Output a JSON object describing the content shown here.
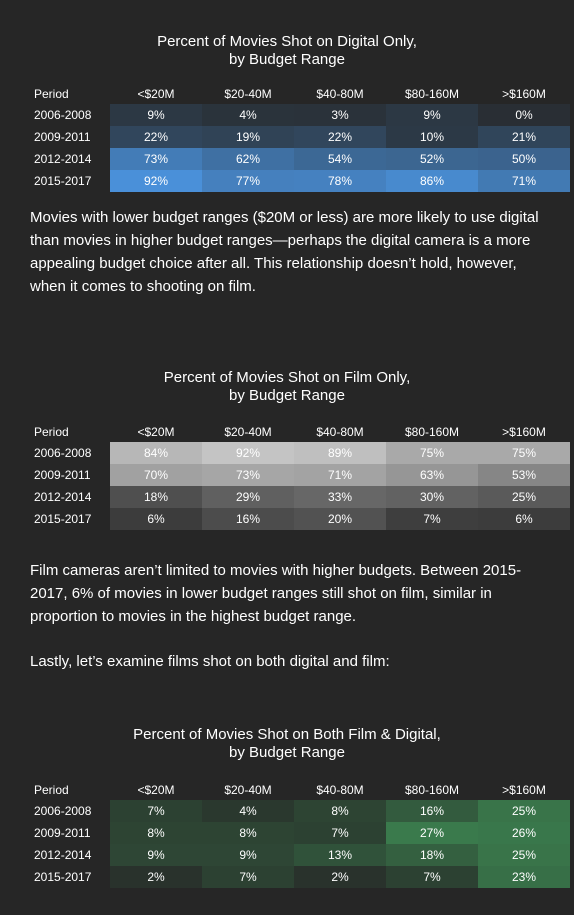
{
  "chart_data": [
    {
      "type": "heatmap",
      "title_lines": [
        "Percent of Movies Shot on Digital Only,",
        "by Budget Range"
      ],
      "row_header": "Period",
      "columns": [
        "<$20M",
        "$20-40M",
        "$40-80M",
        "$80-160M",
        ">$160M"
      ],
      "rows": [
        "2006-2008",
        "2009-2011",
        "2012-2014",
        "2015-2017"
      ],
      "values": [
        [
          9,
          4,
          3,
          9,
          0
        ],
        [
          22,
          19,
          22,
          10,
          21
        ],
        [
          73,
          62,
          54,
          52,
          50
        ],
        [
          92,
          77,
          78,
          86,
          71
        ]
      ],
      "labels": [
        [
          "9%",
          "4%",
          "3%",
          "9%",
          "0%"
        ],
        [
          "22%",
          "19%",
          "22%",
          "10%",
          "21%"
        ],
        [
          "73%",
          "62%",
          "54%",
          "52%",
          "50%"
        ],
        [
          "92%",
          "77%",
          "78%",
          "86%",
          "71%"
        ]
      ],
      "color_low": "#262626",
      "color_high": "#4a90d9"
    },
    {
      "type": "heatmap",
      "title_lines": [
        "Percent of Movies Shot on Film Only,",
        "by Budget Range"
      ],
      "row_header": "Period",
      "columns": [
        "<$20M",
        "$20-40M",
        "$40-80M",
        "$80-160M",
        ">$160M"
      ],
      "rows": [
        "2006-2008",
        "2009-2011",
        "2012-2014",
        "2015-2017"
      ],
      "values": [
        [
          84,
          92,
          89,
          75,
          75
        ],
        [
          70,
          73,
          71,
          63,
          53
        ],
        [
          18,
          29,
          33,
          30,
          25
        ],
        [
          6,
          16,
          20,
          7,
          6
        ]
      ],
      "labels": [
        [
          "84%",
          "92%",
          "89%",
          "75%",
          "75%"
        ],
        [
          "70%",
          "73%",
          "71%",
          "63%",
          "53%"
        ],
        [
          "18%",
          "29%",
          "33%",
          "30%",
          "25%"
        ],
        [
          "6%",
          "16%",
          "20%",
          "7%",
          "6%"
        ]
      ],
      "color_low": "#262626",
      "color_high": "#c4c4c4"
    },
    {
      "type": "heatmap",
      "title_lines": [
        "Percent of Movies Shot on Both Film & Digital,",
        "by Budget Range"
      ],
      "row_header": "Period",
      "columns": [
        "<$20M",
        "$20-40M",
        "$40-80M",
        "$80-160M",
        ">$160M"
      ],
      "rows": [
        "2006-2008",
        "2009-2011",
        "2012-2014",
        "2015-2017"
      ],
      "values": [
        [
          7,
          4,
          8,
          16,
          25
        ],
        [
          8,
          8,
          7,
          27,
          26
        ],
        [
          9,
          9,
          13,
          18,
          25
        ],
        [
          2,
          7,
          2,
          7,
          23
        ]
      ],
      "labels": [
        [
          "7%",
          "4%",
          "8%",
          "16%",
          "25%"
        ],
        [
          "8%",
          "8%",
          "7%",
          "27%",
          "26%"
        ],
        [
          "9%",
          "9%",
          "13%",
          "18%",
          "25%"
        ],
        [
          "2%",
          "7%",
          "2%",
          "7%",
          "23%"
        ]
      ],
      "color_low": "#262626",
      "color_high": "#3a7a4c"
    }
  ],
  "paragraphs": [
    "Movies with lower budget ranges ($20M or less) are more likely to use digital than movies in higher budget ranges—perhaps the digital camera is a more appealing budget choice after all. This relationship doesn’t hold, however, when it comes to shooting on film.",
    "Film cameras aren’t limited to movies with higher budgets. Between 2015-2017, 6% of movies in lower budget ranges still shot on film, similar in proportion to movies in the highest budget range.",
    "Lastly, let’s examine films shot on both digital and film:"
  ]
}
